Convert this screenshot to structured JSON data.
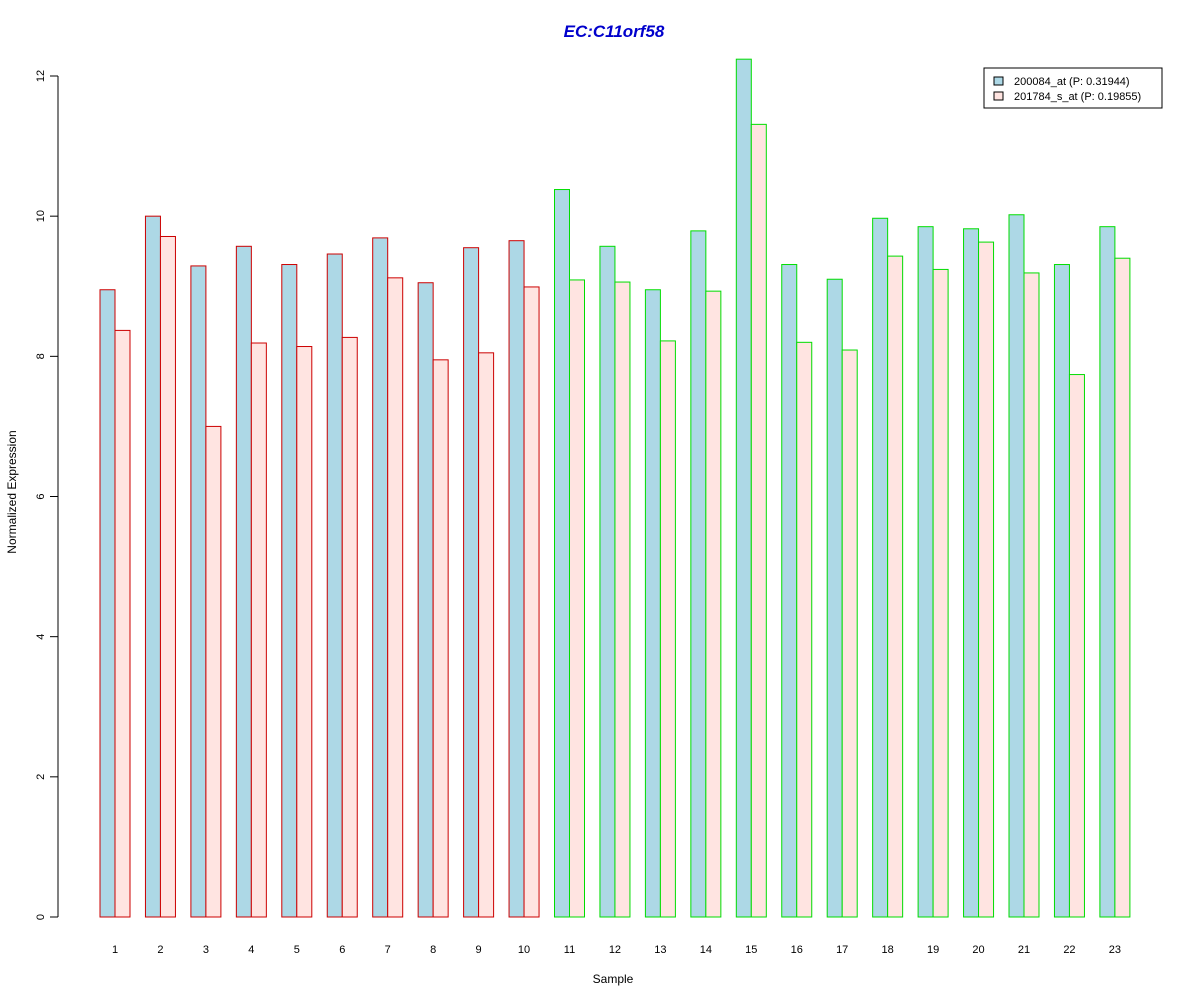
{
  "chart_data": {
    "type": "bar",
    "title": "EC:C11orf58",
    "xlabel": "Sample",
    "ylabel": "Normalized Expression",
    "ylim": [
      0,
      12
    ],
    "yticks": [
      0,
      2,
      4,
      6,
      8,
      10,
      12
    ],
    "categories": [
      "1",
      "2",
      "3",
      "4",
      "5",
      "6",
      "7",
      "8",
      "9",
      "10",
      "11",
      "12",
      "13",
      "14",
      "15",
      "16",
      "17",
      "18",
      "19",
      "20",
      "21",
      "22",
      "23"
    ],
    "series": [
      {
        "name": "200084_at (P: 0.31944)",
        "fill": "#add8e6",
        "values": [
          8.95,
          10.0,
          9.29,
          9.57,
          9.31,
          9.46,
          9.69,
          9.05,
          9.55,
          9.65,
          10.38,
          9.57,
          8.95,
          9.79,
          12.24,
          9.31,
          9.1,
          9.97,
          9.85,
          9.82,
          10.02,
          9.31,
          9.85
        ]
      },
      {
        "name": "201784_s_at (P: 0.19855)",
        "fill": "#ffe4e1",
        "values": [
          8.37,
          9.71,
          7.0,
          8.19,
          8.14,
          8.27,
          9.12,
          7.95,
          8.05,
          8.99,
          9.09,
          9.06,
          8.22,
          8.93,
          11.31,
          8.2,
          8.09,
          9.43,
          9.24,
          9.63,
          9.19,
          7.74,
          9.4
        ]
      }
    ],
    "group_border_colors": [
      "#cc0000",
      "#cc0000",
      "#cc0000",
      "#cc0000",
      "#cc0000",
      "#cc0000",
      "#cc0000",
      "#cc0000",
      "#cc0000",
      "#cc0000",
      "#00dd00",
      "#00dd00",
      "#00dd00",
      "#00dd00",
      "#00dd00",
      "#00dd00",
      "#00dd00",
      "#00dd00",
      "#00dd00",
      "#00dd00",
      "#00dd00",
      "#00dd00",
      "#00dd00"
    ],
    "legend_position": "top-right",
    "grid": false
  }
}
